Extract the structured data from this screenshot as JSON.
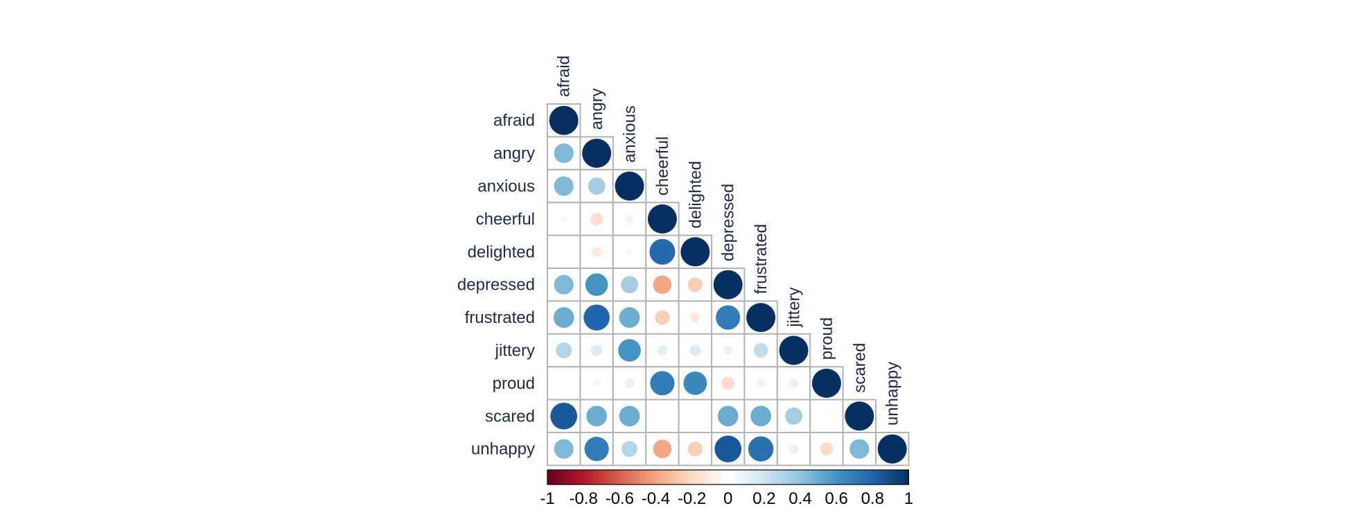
{
  "chart_data": {
    "type": "heatmap",
    "variables": [
      "afraid",
      "angry",
      "anxious",
      "cheerful",
      "delighted",
      "depressed",
      "frustrated",
      "jittery",
      "proud",
      "scared",
      "unhappy"
    ],
    "lower_triangle_correlations": [
      [
        1.0
      ],
      [
        0.45,
        1.0
      ],
      [
        0.45,
        0.35,
        1.0
      ],
      [
        -0.05,
        -0.18,
        0.08,
        1.0
      ],
      [
        0.0,
        -0.12,
        0.04,
        0.78,
        1.0
      ],
      [
        0.45,
        0.6,
        0.35,
        -0.4,
        -0.25,
        1.0
      ],
      [
        0.5,
        0.8,
        0.5,
        -0.25,
        -0.12,
        0.7,
        1.0
      ],
      [
        0.3,
        0.15,
        0.6,
        0.12,
        0.15,
        0.1,
        0.25,
        1.0
      ],
      [
        0.0,
        -0.06,
        0.1,
        0.7,
        0.65,
        -0.2,
        -0.08,
        0.1,
        1.0
      ],
      [
        0.85,
        0.5,
        0.5,
        0.02,
        0.0,
        0.5,
        0.5,
        0.35,
        0.02,
        1.0
      ],
      [
        0.45,
        0.7,
        0.3,
        -0.4,
        -0.25,
        0.85,
        0.75,
        0.1,
        -0.2,
        0.45,
        1.0
      ]
    ],
    "color_scale": {
      "min": -1,
      "max": 1,
      "ticks": [
        "-1",
        "-0.8",
        "-0.6",
        "-0.4",
        "-0.2",
        "0",
        "0.2",
        "0.4",
        "0.6",
        "0.8",
        "1"
      ],
      "colors": [
        "#67001f",
        "#b2182b",
        "#d6604d",
        "#f4a582",
        "#fddbc7",
        "#ffffff",
        "#d1e5f0",
        "#92c5de",
        "#4393c3",
        "#2166ac",
        "#053061"
      ]
    }
  }
}
